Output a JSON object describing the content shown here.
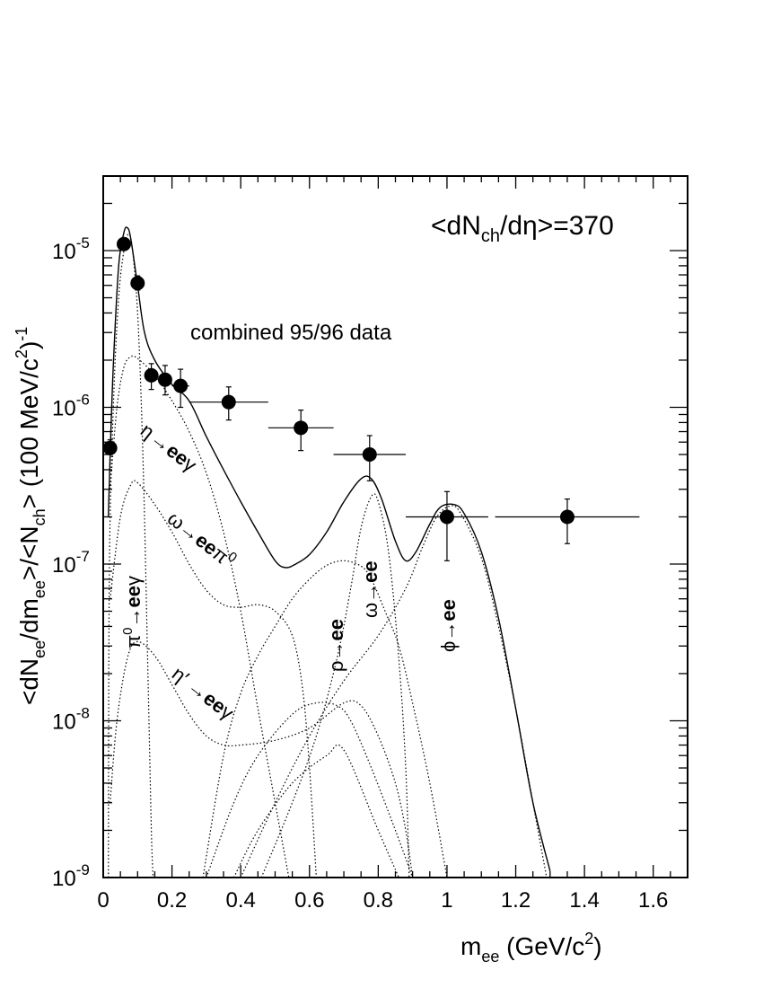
{
  "chart_data": {
    "type": "scatter",
    "title": "",
    "annotation_main": "<dN_ch/dη>=370",
    "annotation_data": "combined 95/96 data",
    "xlabel": "m_ee (GeV/c^2)",
    "ylabel": "<dN_ee/dm_ee>/<N_ch> (100 MeV/c^2)^-1",
    "xlim": [
      0,
      1.7
    ],
    "ylim": [
      1e-09,
      3e-05
    ],
    "y_scale": "log",
    "x_ticks": [
      0,
      0.2,
      0.4,
      0.6,
      0.8,
      1,
      1.2,
      1.4,
      1.6
    ],
    "x_tick_labels": [
      "0",
      "0.2",
      "0.4",
      "0.6",
      "0.8",
      "1",
      "1.2",
      "1.4",
      "1.6"
    ],
    "y_ticks": [
      1e-09,
      1e-08,
      1e-07,
      1e-06,
      1e-05
    ],
    "y_tick_labels": [
      {
        "base": "10",
        "exp": "-9"
      },
      {
        "base": "10",
        "exp": "-8"
      },
      {
        "base": "10",
        "exp": "-7"
      },
      {
        "base": "10",
        "exp": "-6"
      },
      {
        "base": "10",
        "exp": "-5"
      }
    ],
    "data_points": [
      {
        "x": 0.02,
        "y": 5.5e-07,
        "xerr": 0.0,
        "ylo": 5e-07,
        "yhi": 6.2e-07
      },
      {
        "x": 0.06,
        "y": 1.1e-05,
        "xerr": 0.0,
        "ylo": 1.02e-05,
        "yhi": 1.18e-05
      },
      {
        "x": 0.1,
        "y": 6.2e-06,
        "xerr": 0.0,
        "ylo": 5.6e-06,
        "yhi": 6.9e-06
      },
      {
        "x": 0.14,
        "y": 1.6e-06,
        "xerr": 0.0,
        "ylo": 1.3e-06,
        "yhi": 1.9e-06
      },
      {
        "x": 0.18,
        "y": 1.5e-06,
        "xerr": 0.0,
        "ylo": 1.2e-06,
        "yhi": 1.85e-06
      },
      {
        "x": 0.225,
        "y": 1.37e-06,
        "xerr": 0.025,
        "ylo": 1e-06,
        "yhi": 1.75e-06
      },
      {
        "x": 0.365,
        "y": 1.08e-06,
        "xerr": 0.115,
        "ylo": 8.3e-07,
        "yhi": 1.35e-06
      },
      {
        "x": 0.575,
        "y": 7.4e-07,
        "xerr": 0.095,
        "ylo": 5.3e-07,
        "yhi": 9.6e-07
      },
      {
        "x": 0.775,
        "y": 5e-07,
        "xerr": 0.105,
        "ylo": 3.4e-07,
        "yhi": 6.6e-07
      },
      {
        "x": 1.0,
        "y": 2e-07,
        "xerr": 0.12,
        "ylo": 1.05e-07,
        "yhi": 2.9e-07
      },
      {
        "x": 1.35,
        "y": 2e-07,
        "xerr": 0.21,
        "ylo": 1.35e-07,
        "yhi": 2.6e-07
      }
    ],
    "total_curve": [
      [
        0.015,
        2e-07
      ],
      [
        0.02,
        5e-07
      ],
      [
        0.03,
        2e-06
      ],
      [
        0.045,
        8e-06
      ],
      [
        0.06,
        1.3e-05
      ],
      [
        0.07,
        1.4e-05
      ],
      [
        0.08,
        1.2e-05
      ],
      [
        0.1,
        6e-06
      ],
      [
        0.12,
        3e-06
      ],
      [
        0.15,
        2e-06
      ],
      [
        0.2,
        1.4e-06
      ],
      [
        0.25,
        1.1e-06
      ],
      [
        0.3,
        6.5e-07
      ],
      [
        0.35,
        4e-07
      ],
      [
        0.4,
        2.5e-07
      ],
      [
        0.45,
        1.6e-07
      ],
      [
        0.5,
        1.05e-07
      ],
      [
        0.53,
        9.5e-08
      ],
      [
        0.56,
        1e-07
      ],
      [
        0.6,
        1.15e-07
      ],
      [
        0.65,
        1.6e-07
      ],
      [
        0.7,
        2.5e-07
      ],
      [
        0.75,
        3.5e-07
      ],
      [
        0.78,
        3.5e-07
      ],
      [
        0.81,
        2.6e-07
      ],
      [
        0.85,
        1.4e-07
      ],
      [
        0.88,
        1.05e-07
      ],
      [
        0.91,
        1.2e-07
      ],
      [
        0.95,
        1.8e-07
      ],
      [
        0.98,
        2.3e-07
      ],
      [
        1.02,
        2.4e-07
      ],
      [
        1.05,
        2.1e-07
      ],
      [
        1.1,
        1.2e-07
      ],
      [
        1.15,
        4.5e-08
      ],
      [
        1.2,
        1.2e-08
      ],
      [
        1.25,
        3e-09
      ],
      [
        1.3,
        1.1e-09
      ]
    ],
    "components": [
      {
        "name": "eta_Dalitz",
        "points": [
          [
            0.02,
            3e-07
          ],
          [
            0.04,
            1e-06
          ],
          [
            0.06,
            1.8e-06
          ],
          [
            0.08,
            2.1e-06
          ],
          [
            0.1,
            2.05e-06
          ],
          [
            0.15,
            1.6e-06
          ],
          [
            0.2,
            1.1e-06
          ],
          [
            0.25,
            7e-07
          ],
          [
            0.3,
            3.8e-07
          ],
          [
            0.35,
            1.6e-07
          ],
          [
            0.4,
            5e-08
          ],
          [
            0.45,
            1.2e-08
          ],
          [
            0.5,
            3e-09
          ],
          [
            0.54,
            1e-09
          ]
        ]
      },
      {
        "name": "omega_Dalitz",
        "points": [
          [
            0.02,
            6e-08
          ],
          [
            0.05,
            2e-07
          ],
          [
            0.08,
            3.2e-07
          ],
          [
            0.1,
            3.3e-07
          ],
          [
            0.15,
            2.4e-07
          ],
          [
            0.2,
            1.6e-07
          ],
          [
            0.25,
            1e-07
          ],
          [
            0.3,
            6.8e-08
          ],
          [
            0.35,
            5.5e-08
          ],
          [
            0.4,
            5.3e-08
          ],
          [
            0.45,
            5.5e-08
          ],
          [
            0.5,
            5e-08
          ],
          [
            0.55,
            3.5e-08
          ],
          [
            0.58,
            1.6e-08
          ],
          [
            0.6,
            5e-09
          ],
          [
            0.62,
            1e-09
          ]
        ]
      },
      {
        "name": "etaprime_Dalitz",
        "points": [
          [
            0.02,
            3e-09
          ],
          [
            0.04,
            1e-08
          ],
          [
            0.07,
            2.5e-08
          ],
          [
            0.1,
            3.2e-08
          ],
          [
            0.15,
            2.6e-08
          ],
          [
            0.2,
            1.7e-08
          ],
          [
            0.25,
            1.1e-08
          ],
          [
            0.3,
            8e-09
          ],
          [
            0.35,
            7e-09
          ],
          [
            0.4,
            7e-09
          ],
          [
            0.5,
            7.5e-09
          ],
          [
            0.6,
            9e-09
          ],
          [
            0.7,
            1.3e-08
          ],
          [
            0.75,
            1.25e-08
          ],
          [
            0.8,
            8e-09
          ],
          [
            0.85,
            4e-09
          ],
          [
            0.88,
            2e-09
          ],
          [
            0.9,
            1e-09
          ]
        ]
      },
      {
        "name": "pi0_Dalitz",
        "points": [
          [
            0.015,
            1e-09
          ],
          [
            0.018,
            1e-07
          ],
          [
            0.03,
            1.1e-06
          ],
          [
            0.045,
            5e-06
          ],
          [
            0.06,
            1e-05
          ],
          [
            0.07,
            1.25e-05
          ],
          [
            0.08,
            1.2e-05
          ],
          [
            0.09,
            8e-06
          ],
          [
            0.1,
            4e-06
          ],
          [
            0.11,
            1.2e-06
          ],
          [
            0.12,
            2e-07
          ],
          [
            0.13,
            2e-08
          ],
          [
            0.14,
            2e-09
          ],
          [
            0.145,
            1e-09
          ]
        ]
      },
      {
        "name": "rho",
        "points": [
          [
            0.29,
            1e-09
          ],
          [
            0.35,
            6e-09
          ],
          [
            0.4,
            1.5e-08
          ],
          [
            0.45,
            2.6e-08
          ],
          [
            0.5,
            4e-08
          ],
          [
            0.55,
            6e-08
          ],
          [
            0.6,
            8e-08
          ],
          [
            0.65,
            9.8e-08
          ],
          [
            0.7,
            1.05e-07
          ],
          [
            0.75,
            9.7e-08
          ],
          [
            0.78,
            8e-08
          ],
          [
            0.82,
            5e-08
          ],
          [
            0.86,
            3e-08
          ],
          [
            0.9,
            1.3e-08
          ],
          [
            0.95,
            4e-09
          ],
          [
            1.0,
            1e-09
          ]
        ]
      },
      {
        "name": "omega",
        "points": [
          [
            0.46,
            1e-09
          ],
          [
            0.55,
            3e-09
          ],
          [
            0.62,
            8e-09
          ],
          [
            0.68,
            2.5e-08
          ],
          [
            0.72,
            7e-08
          ],
          [
            0.75,
            1.7e-07
          ],
          [
            0.78,
            2.7e-07
          ],
          [
            0.8,
            2.5e-07
          ],
          [
            0.83,
            1.2e-07
          ],
          [
            0.86,
            2.5e-08
          ],
          [
            0.88,
            5e-09
          ],
          [
            0.89,
            1e-09
          ]
        ]
      },
      {
        "name": "phi",
        "points": [
          [
            0.4,
            1e-09
          ],
          [
            0.5,
            3e-09
          ],
          [
            0.6,
            8e-09
          ],
          [
            0.7,
            1.8e-08
          ],
          [
            0.8,
            3.5e-08
          ],
          [
            0.88,
            7e-08
          ],
          [
            0.93,
            1.3e-07
          ],
          [
            0.97,
            2e-07
          ],
          [
            1.01,
            2.35e-07
          ],
          [
            1.04,
            2.1e-07
          ],
          [
            1.1,
            1.1e-07
          ],
          [
            1.15,
            4e-08
          ],
          [
            1.2,
            1.2e-08
          ],
          [
            1.25,
            3e-09
          ],
          [
            1.29,
            1e-09
          ]
        ]
      },
      {
        "name": "aux_tail",
        "points": [
          [
            0.3,
            1e-09
          ],
          [
            0.38,
            3e-09
          ],
          [
            0.45,
            6e-09
          ],
          [
            0.55,
            1.1e-08
          ],
          [
            0.62,
            1.3e-08
          ],
          [
            0.68,
            1.25e-08
          ],
          [
            0.72,
            1e-08
          ],
          [
            0.78,
            5e-09
          ],
          [
            0.85,
            2e-09
          ],
          [
            0.9,
            1e-09
          ]
        ]
      },
      {
        "name": "aux_phi_tail",
        "points": [
          [
            0.38,
            1e-09
          ],
          [
            0.45,
            2e-09
          ],
          [
            0.55,
            4e-09
          ],
          [
            0.65,
            6e-09
          ],
          [
            0.7,
            6.5e-09
          ],
          [
            0.8,
            2e-09
          ],
          [
            0.86,
            1e-09
          ]
        ]
      }
    ]
  }
}
